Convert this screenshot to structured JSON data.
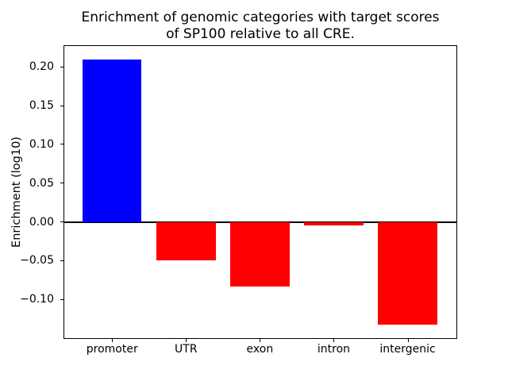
{
  "figure": {
    "title_lines": [
      "Enrichment of genomic categories with target scores",
      "of SP100 relative to all CRE."
    ]
  },
  "chart_data": {
    "type": "bar",
    "title": "Enrichment of genomic categories with target scores of SP100 relative to all CRE.",
    "ylabel": "Enrichment (log10)",
    "xlabel": "",
    "categories": [
      "promoter",
      "UTR",
      "exon",
      "intron",
      "intergenic"
    ],
    "values": [
      0.21,
      -0.05,
      -0.083,
      -0.005,
      -0.133
    ],
    "bar_colors": [
      "#0000ff",
      "#ff0000",
      "#ff0000",
      "#ff0000",
      "#ff0000"
    ],
    "positive_color": "#0000ff",
    "negative_color": "#ff0000",
    "yticks": [
      {
        "label": "0.20",
        "value": 0.2
      },
      {
        "label": "0.15",
        "value": 0.15
      },
      {
        "label": "0.10",
        "value": 0.1
      },
      {
        "label": "0.05",
        "value": 0.05
      },
      {
        "label": "0.00",
        "value": 0.0
      },
      {
        "label": "−0.05",
        "value": -0.05
      },
      {
        "label": "−0.10",
        "value": -0.1
      }
    ],
    "ylim": [
      -0.15,
      0.227
    ],
    "xlim": [
      -0.647,
      4.66
    ],
    "bar_width": 0.8,
    "zero_line": true,
    "grid": false,
    "legend": null
  }
}
